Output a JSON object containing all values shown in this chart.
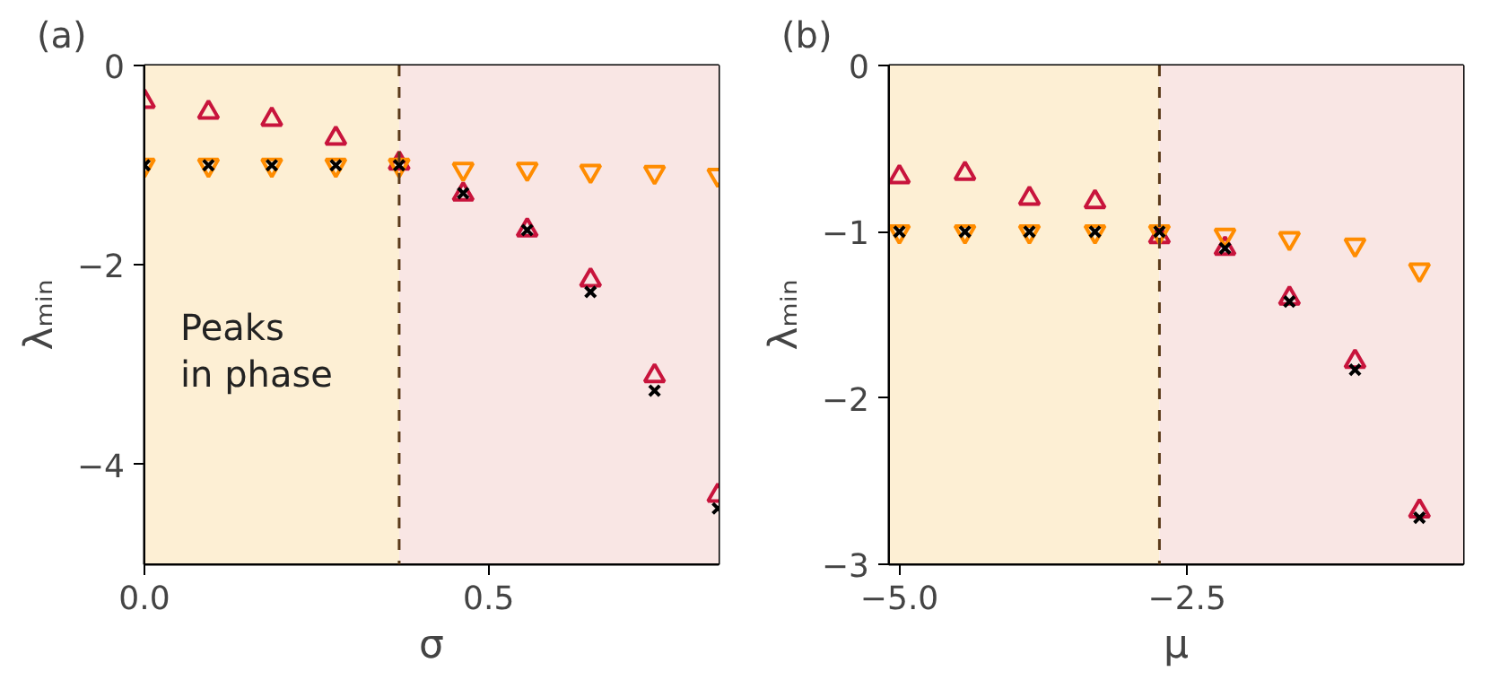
{
  "chart_data": [
    {
      "type": "scatter",
      "title": "(a)",
      "xlabel": "σ",
      "ylabel": "λₘᵢₙ",
      "x": [
        0,
        0.093,
        0.185,
        0.278,
        0.37,
        0.463,
        0.556,
        0.648,
        0.741,
        0.833
      ],
      "series": [
        {
          "color": "#c8143c",
          "marker": "triangle",
          "values": [
            -0.36,
            -0.47,
            -0.54,
            -0.73,
            -0.98,
            -1.29,
            -1.65,
            -2.15,
            -3.11,
            -4.31
          ]
        },
        {
          "color": "#ff8c00",
          "values": [
            -1.0,
            -1.0,
            -1.0,
            -1.0,
            -1.0,
            -1.04,
            -1.04,
            -1.06,
            -1.07,
            -1.1
          ]
        },
        {
          "color": "#000000",
          "marker": "cross",
          "values": [
            -1.0,
            -1.0,
            -1.0,
            -1.0,
            -1.0,
            -1.28,
            -1.65,
            -2.27,
            -3.26,
            -4.44
          ]
        }
      ],
      "xlim": [
        0,
        0.834
      ],
      "ylim": [
        -5,
        0
      ],
      "xticks": [
        {
          "value": 0,
          "label": "0.0"
        },
        0.5
      ],
      "yticks": [
        0,
        {
          "value": -2,
          "label": "−2"
        },
        {
          "value": -4,
          "label": "−4"
        }
      ],
      "bands": [
        {
          "axis": "x",
          "from": 0,
          "to": 0.37,
          "color": "#fdefd4"
        },
        {
          "axis": "x",
          "from": 0.37,
          "to": 0.834,
          "color": "#f9e6e4"
        }
      ],
      "ref_lines": [
        {
          "axis": "x",
          "value": 0.37,
          "color": "#5a3a1a",
          "line_style": "dashed"
        }
      ],
      "annotations": [
        "Peaks\nin phase"
      ]
    },
    {
      "type": "scatter",
      "title": "(b)",
      "xlabel": "μ",
      "ylabel": "λₘᵢₙ",
      "x": [
        -5.0,
        -4.43,
        -3.87,
        -3.3,
        -2.74,
        -2.17,
        -1.61,
        -1.04,
        -0.48
      ],
      "series": [
        {
          "color": "#c8143c",
          "marker": "triangle",
          "values": [
            -0.67,
            -0.65,
            -0.8,
            -0.82,
            -1.03,
            -1.1,
            -1.4,
            -1.78,
            -2.68
          ]
        },
        {
          "color": "#ff8c00",
          "values": [
            -1.0,
            -1.0,
            -1.0,
            -1.0,
            -1.0,
            -1.02,
            -1.04,
            -1.08,
            -1.23
          ]
        },
        {
          "color": "#000000",
          "marker": "cross",
          "values": [
            -1.0,
            -1.0,
            -1.0,
            -1.0,
            -1.0,
            -1.1,
            -1.42,
            -1.83,
            -2.72
          ]
        }
      ],
      "xlim": [
        -5.09,
        -0.1
      ],
      "ylim": [
        -3,
        0
      ],
      "xticks": [
        {
          "value": -5,
          "label": "−5.0"
        },
        {
          "value": -2.5,
          "label": "−2.5"
        }
      ],
      "yticks": [
        0,
        {
          "value": -1,
          "label": "−1"
        },
        {
          "value": -2,
          "label": "−2"
        },
        {
          "value": -3,
          "label": "−3"
        }
      ],
      "bands": [
        {
          "axis": "x",
          "from": -5.09,
          "to": -2.74,
          "color": "#fdefd4"
        },
        {
          "axis": "x",
          "from": -2.74,
          "to": -0.1,
          "color": "#f9e6e4"
        }
      ],
      "ref_lines": [
        {
          "axis": "x",
          "value": -2.74,
          "color": "#5a3a1a",
          "line_style": "dashed"
        }
      ]
    }
  ]
}
